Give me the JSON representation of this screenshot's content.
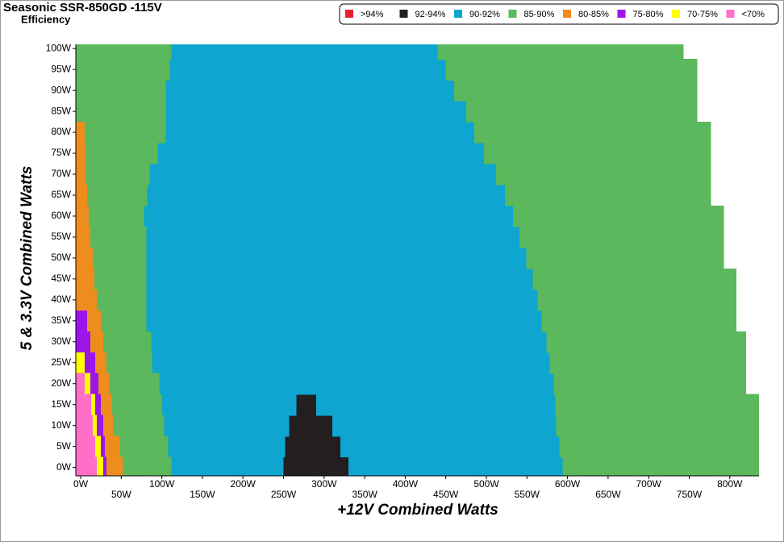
{
  "chart_data": {
    "type": "efficiency-map",
    "title": "Seasonic SSR-850GD -115V",
    "subtitle": "Efficiency",
    "x_label": "+12V Combined Watts",
    "y_label": "5 & 3.3V Combined Watts",
    "xlim": [
      -6,
      836
    ],
    "ylim": [
      -2,
      101
    ],
    "row_height": 5,
    "xticks": [
      {
        "value": 0,
        "label": "0W"
      },
      {
        "value": 50,
        "label": "50W"
      },
      {
        "value": 100,
        "label": "100W"
      },
      {
        "value": 150,
        "label": "150W"
      },
      {
        "value": 200,
        "label": "200W"
      },
      {
        "value": 250,
        "label": "250W"
      },
      {
        "value": 300,
        "label": "300W"
      },
      {
        "value": 350,
        "label": "350W"
      },
      {
        "value": 400,
        "label": "400W"
      },
      {
        "value": 450,
        "label": "450W"
      },
      {
        "value": 500,
        "label": "500W"
      },
      {
        "value": 550,
        "label": "550W"
      },
      {
        "value": 600,
        "label": "600W"
      },
      {
        "value": 650,
        "label": "650W"
      },
      {
        "value": 700,
        "label": "700W"
      },
      {
        "value": 750,
        "label": "750W"
      },
      {
        "value": 800,
        "label": "800W"
      }
    ],
    "yticks": [
      {
        "value": 0,
        "label": "0W"
      },
      {
        "value": 5,
        "label": "5W"
      },
      {
        "value": 10,
        "label": "10W"
      },
      {
        "value": 15,
        "label": "15W"
      },
      {
        "value": 20,
        "label": "20W"
      },
      {
        "value": 25,
        "label": "25W"
      },
      {
        "value": 30,
        "label": "30W"
      },
      {
        "value": 35,
        "label": "35W"
      },
      {
        "value": 40,
        "label": "40W"
      },
      {
        "value": 45,
        "label": "45W"
      },
      {
        "value": 50,
        "label": "50W"
      },
      {
        "value": 55,
        "label": "55W"
      },
      {
        "value": 60,
        "label": "60W"
      },
      {
        "value": 65,
        "label": "65W"
      },
      {
        "value": 70,
        "label": "70W"
      },
      {
        "value": 75,
        "label": "75W"
      },
      {
        "value": 80,
        "label": "80W"
      },
      {
        "value": 85,
        "label": "85W"
      },
      {
        "value": 90,
        "label": "90W"
      },
      {
        "value": 95,
        "label": "95W"
      },
      {
        "value": 100,
        "label": "100W"
      }
    ],
    "series": [
      {
        "name": ">94%",
        "color": "#e8202a",
        "y": [],
        "x_start": [],
        "x_end": []
      },
      {
        "name": "92-94%",
        "color": "#231f20",
        "y": [
          0,
          5,
          10,
          15
        ],
        "x_start": [
          250,
          252,
          257,
          266
        ],
        "x_end": [
          330,
          320,
          310,
          290
        ]
      },
      {
        "name": "90-92%",
        "color": "#0ea5d0",
        "y": [
          0,
          0,
          5,
          5,
          10,
          10,
          15,
          15,
          20,
          25,
          30,
          35,
          40,
          45,
          50,
          55,
          60,
          65,
          70,
          75,
          80,
          85,
          90,
          95,
          100
        ],
        "x_start": [
          112,
          330,
          108,
          320,
          103,
          310,
          100,
          290,
          97,
          88,
          87,
          81,
          81,
          81,
          81,
          81,
          78,
          82,
          85,
          95,
          105,
          105,
          105,
          110,
          112
        ],
        "x_end": [
          250,
          594,
          252,
          590,
          257,
          586,
          266,
          585,
          583,
          578,
          574,
          568,
          563,
          557,
          549,
          541,
          533,
          523,
          512,
          497,
          485,
          475,
          460,
          450,
          440
        ]
      },
      {
        "name": "85-90%",
        "color": "#5cb85c",
        "y": [
          0,
          5,
          10,
          15,
          20,
          25,
          30,
          35,
          40,
          45,
          50,
          55,
          60,
          65,
          70,
          75,
          80,
          85,
          90,
          95,
          100,
          0,
          5,
          10,
          15,
          20,
          25,
          30,
          35,
          40,
          45,
          50,
          55,
          60,
          65,
          70,
          75,
          80,
          85,
          90,
          95,
          100
        ],
        "x_start": [
          52,
          48,
          40,
          38,
          35,
          32,
          28,
          25,
          20,
          17,
          15,
          12,
          10,
          8,
          6,
          6,
          5,
          -6,
          -6,
          -6,
          -6,
          594,
          590,
          586,
          585,
          583,
          578,
          574,
          568,
          563,
          557,
          549,
          541,
          533,
          523,
          512,
          497,
          485,
          475,
          460,
          450,
          440
        ],
        "x_end": [
          112,
          108,
          103,
          100,
          97,
          88,
          87,
          81,
          81,
          81,
          81,
          81,
          78,
          82,
          85,
          95,
          105,
          105,
          105,
          110,
          112,
          840,
          840,
          840,
          840,
          820,
          820,
          820,
          808,
          808,
          808,
          793,
          793,
          793,
          777,
          777,
          777,
          777,
          760,
          760,
          760,
          743
        ]
      },
      {
        "name": "80-85%",
        "color": "#ee8c1e",
        "y": [
          0,
          5,
          10,
          15,
          20,
          25,
          30,
          35,
          40,
          45,
          50,
          55,
          60,
          65,
          70,
          75,
          80
        ],
        "x_start": [
          32,
          30,
          28,
          25,
          22,
          18,
          12,
          8,
          -6,
          -6,
          -6,
          -6,
          -6,
          -6,
          -6,
          -6,
          -6
        ],
        "x_end": [
          52,
          48,
          40,
          38,
          35,
          32,
          28,
          25,
          20,
          17,
          15,
          12,
          10,
          8,
          6,
          6,
          5
        ]
      },
      {
        "name": "75-80%",
        "color": "#9b16e8",
        "y": [
          0,
          5,
          10,
          15,
          20,
          25,
          30,
          35
        ],
        "x_start": [
          28,
          25,
          20,
          18,
          12,
          5,
          -6,
          -6
        ],
        "x_end": [
          32,
          30,
          28,
          25,
          22,
          18,
          12,
          8
        ]
      },
      {
        "name": "70-75%",
        "color": "#ffff00",
        "y": [
          0,
          5,
          10,
          15,
          20,
          25
        ],
        "x_start": [
          20,
          18,
          15,
          13,
          5,
          -6
        ],
        "x_end": [
          28,
          25,
          20,
          18,
          12,
          5
        ]
      },
      {
        "name": "<70%",
        "color": "#ff6ec7",
        "y": [
          0,
          5,
          10,
          15,
          20
        ],
        "x_start": [
          -6,
          -6,
          -6,
          -6,
          -6
        ],
        "x_end": [
          20,
          18,
          15,
          13,
          5
        ]
      }
    ]
  }
}
